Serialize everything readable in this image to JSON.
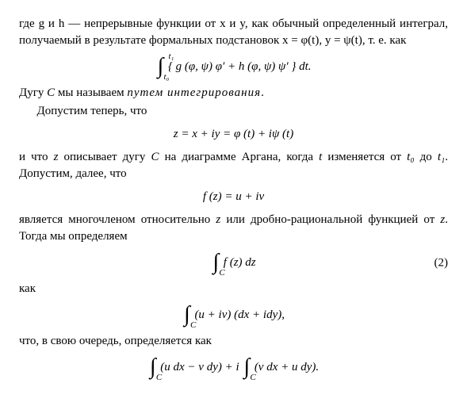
{
  "p1": "где g и h — непрерывные функции от x и y, как обычный определенный интеграл, получаемый в результате формальных подстановок x = φ(t), y = ψ(t), т. е. как",
  "eq1_upper": "t₁",
  "eq1_lower": "t₀",
  "eq1_body": "{ g (φ, ψ) φ′ + h (φ, ψ) ψ′ } dt.",
  "p2a": "Дугу ",
  "p2b": " мы называем ",
  "p2term": "путем интегрирования",
  "p2c": ".",
  "p3": "Допустим теперь, что",
  "eq2": "z = x + iy = φ (t) + iψ (t)",
  "p4a": "и что ",
  "p4b": " описывает дугу ",
  "p4c": " на диаграмме Аргана, когда ",
  "p4d": " изменяется от ",
  "p4e": " до ",
  "p4f": ". Допустим, далее, что",
  "var_z": "z",
  "var_C": "C",
  "var_t": "t",
  "var_t0": "t₀",
  "var_t1": "t₁",
  "eq3": "f (z) = u + iv",
  "p5a": "является многочленом относительно ",
  "p5b": " или дробно-рациональной функцией от ",
  "p5c": ". Тогда мы определяем",
  "eq4_body": "f (z) dz",
  "eq4_lower": "C",
  "eq4_label": "(2)",
  "p6": "как",
  "eq5_body": "(u + iv) (dx + idy),",
  "eq5_lower": "C",
  "p7": "что, в свою очередь, определяется как",
  "eq6a_body": "(u dx − v dy) + i",
  "eq6b_body": "(v dx + u dy).",
  "eq6_lower": "C"
}
